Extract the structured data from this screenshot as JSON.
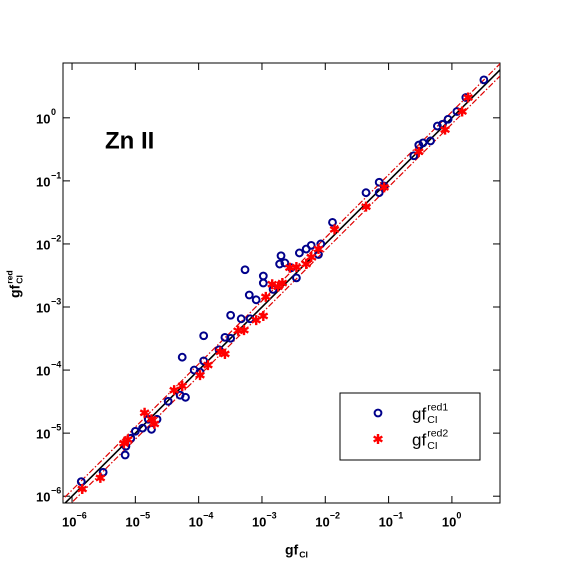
{
  "chart_data": {
    "type": "scatter",
    "annotation": "Zn II",
    "x_label": {
      "text": "gf",
      "sub": "CI"
    },
    "y_label": {
      "text": "gf",
      "sub": "CI",
      "sup": "red"
    },
    "log_x": true,
    "log_y": true,
    "xlim": [
      7.2e-07,
      5.75
    ],
    "ylim": [
      7.8e-07,
      7.4
    ],
    "xticks": [
      {
        "value": 1e-06,
        "label": "10",
        "exponent": "−6"
      },
      {
        "value": 1e-05,
        "label": "10",
        "exponent": "−5"
      },
      {
        "value": 0.0001,
        "label": "10",
        "exponent": "−4"
      },
      {
        "value": 0.001,
        "label": "10",
        "exponent": "−3"
      },
      {
        "value": 0.01,
        "label": "10",
        "exponent": "−2"
      },
      {
        "value": 0.1,
        "label": "10",
        "exponent": "−1"
      },
      {
        "value": 1,
        "label": "10",
        "exponent": "0"
      }
    ],
    "yticks": [
      {
        "value": 1e-06,
        "label": "10",
        "exponent": "−6"
      },
      {
        "value": 1e-05,
        "label": "10",
        "exponent": "−5"
      },
      {
        "value": 0.0001,
        "label": "10",
        "exponent": "−4"
      },
      {
        "value": 0.001,
        "label": "10",
        "exponent": "−3"
      },
      {
        "value": 0.01,
        "label": "10",
        "exponent": "−2"
      },
      {
        "value": 0.1,
        "label": "10",
        "exponent": "−1"
      },
      {
        "value": 1,
        "label": "10",
        "exponent": "0"
      }
    ],
    "reference_lines": [
      {
        "factor": 1,
        "color": "#000000",
        "dashed": false
      },
      {
        "factor": 1.25,
        "color": "#e00000",
        "dashed": true
      },
      {
        "factor": 0.8,
        "color": "#e00000",
        "dashed": true
      }
    ],
    "legend_position": "lower right",
    "series": [
      {
        "name": "gf",
        "sub": "CI",
        "sup": "red1",
        "marker": "circle",
        "color": "#00008b",
        "x": [
          1.4e-06,
          3.1e-06,
          6.9e-06,
          7.1e-06,
          8.5e-06,
          1e-05,
          1.3e-05,
          1.6e-05,
          1.8e-05,
          2.2e-05,
          3.3e-05,
          5.1e-05,
          5.5e-05,
          6.2e-05,
          8.5e-05,
          0.000105,
          0.00012,
          0.00012,
          0.00021,
          0.00026,
          0.00032,
          0.00032,
          0.00047,
          0.00054,
          0.00063,
          0.00065,
          0.00081,
          0.00105,
          0.00105,
          0.0015,
          0.0019,
          0.002,
          0.0023,
          0.0029,
          0.0035,
          0.0039,
          0.005,
          0.006,
          0.0078,
          0.0085,
          0.013,
          0.044,
          0.071,
          0.071,
          0.085,
          0.25,
          0.3,
          0.35,
          0.46,
          0.59,
          0.71,
          0.87,
          1.2,
          1.66,
          3.2
        ],
        "values": [
          1.7e-06,
          2.4e-06,
          4.5e-06,
          6.2e-06,
          8.3e-06,
          1.07e-05,
          1.2e-05,
          1.66e-05,
          1.15e-05,
          1.66e-05,
          3.2e-05,
          4e-05,
          0.00016,
          3.7e-05,
          0.0001,
          9.3e-05,
          0.00035,
          0.00014,
          0.00021,
          0.00033,
          0.00074,
          0.00032,
          0.00065,
          0.0039,
          0.00155,
          0.00065,
          0.0013,
          0.0031,
          0.0024,
          0.0019,
          0.0048,
          0.0065,
          0.005,
          0.0042,
          0.0029,
          0.0072,
          0.0083,
          0.0095,
          0.0068,
          0.01,
          0.022,
          0.065,
          0.095,
          0.065,
          0.083,
          0.25,
          0.37,
          0.4,
          0.43,
          0.74,
          0.79,
          0.95,
          1.26,
          2.1,
          4.0
        ]
      },
      {
        "name": "gf",
        "sub": "CI",
        "sup": "red2",
        "marker": "asterisk",
        "color": "#ff0000",
        "x": [
          1.45e-06,
          2.8e-06,
          6.6e-06,
          7.6e-06,
          1.4e-05,
          1.8e-05,
          2e-05,
          4.1e-05,
          5.5e-05,
          0.000105,
          0.00014,
          0.00022,
          0.00026,
          0.00042,
          0.00052,
          0.00081,
          0.00105,
          0.00115,
          0.00145,
          0.0018,
          0.0021,
          0.00275,
          0.0035,
          0.005,
          0.006,
          0.0078,
          0.014,
          0.044,
          0.085,
          0.3,
          0.78,
          1.45,
          1.8
        ],
        "values": [
          1.3e-06,
          1.95e-06,
          6.9e-06,
          7.9e-06,
          2.1e-05,
          1.66e-05,
          1.4e-05,
          4.8e-05,
          5.6e-05,
          8.3e-05,
          0.00012,
          0.000195,
          0.00018,
          0.00042,
          0.00043,
          0.00062,
          0.00072,
          0.00145,
          0.0023,
          0.0021,
          0.0024,
          0.0042,
          0.0043,
          0.0048,
          0.0062,
          0.0083,
          0.017,
          0.039,
          0.079,
          0.29,
          0.65,
          1.26,
          2.1
        ]
      }
    ]
  }
}
